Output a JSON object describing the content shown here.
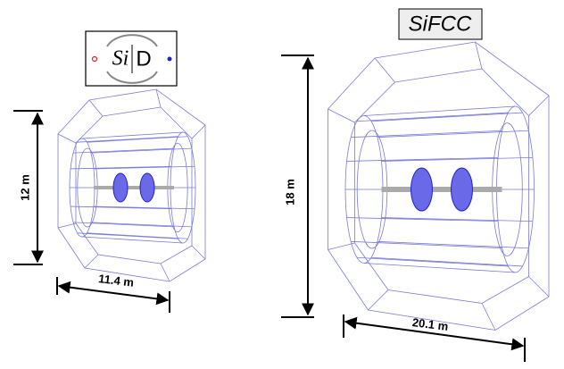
{
  "left": {
    "logo": {
      "part1": "Si",
      "part2": "D"
    },
    "height_label": "12 m",
    "width_label": "11.4 m"
  },
  "right": {
    "title": "SiFCC",
    "height_label": "18 m",
    "width_label": "20.1 m"
  }
}
